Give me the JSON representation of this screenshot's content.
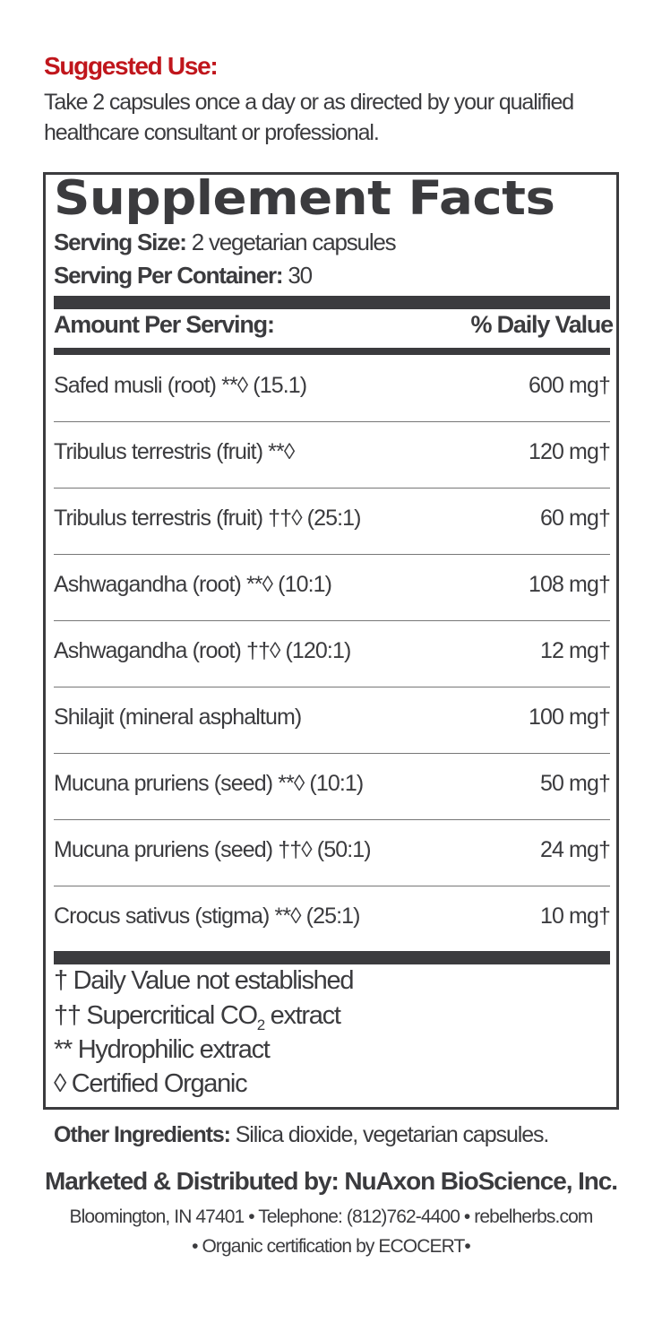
{
  "suggested_use": {
    "title": "Suggested Use:",
    "text": "Take 2 capsules once a day or as directed by your qualified healthcare consultant or professional."
  },
  "facts": {
    "title": "Supplement Facts",
    "serving_size_label": "Serving Size:",
    "serving_size_value": " 2 vegetarian capsules",
    "servings_label": "Serving Per Container:",
    "servings_value": " 30",
    "amount_header": "Amount Per Serving:",
    "dv_header": "% Daily Value",
    "rows": [
      {
        "name": "Safed musli (root) **◊ (15.1)",
        "amount": "600 mg†"
      },
      {
        "name": "Tribulus terrestris (fruit) **◊",
        "amount": "120 mg†"
      },
      {
        "name": "Tribulus terrestris (fruit) ††◊ (25:1)",
        "amount": "60 mg†"
      },
      {
        "name": "Ashwagandha (root) **◊ (10:1)",
        "amount": "108 mg†"
      },
      {
        "name": "Ashwagandha (root) ††◊ (120:1)",
        "amount": "12 mg†"
      },
      {
        "name": "Shilajit (mineral asphaltum)",
        "amount": "100 mg†"
      },
      {
        "name": "Mucuna pruriens (seed) **◊ (10:1)",
        "amount": "50 mg†"
      },
      {
        "name": "Mucuna pruriens (seed) ††◊ (50:1)",
        "amount": "24 mg†"
      },
      {
        "name": "Crocus sativus (stigma) **◊  (25:1)",
        "amount": "10 mg†"
      }
    ],
    "footnotes": {
      "dagger": "† Daily Value not established",
      "double_dagger_prefix": "†† Supercritical CO",
      "double_dagger_sub": "2",
      "double_dagger_suffix": " extract",
      "asterisk": "** Hydrophilic extract",
      "diamond": "◊ Certified Organic"
    }
  },
  "other_ingredients": {
    "label": "Other Ingredients:",
    "value": " Silica dioxide, vegetarian capsules."
  },
  "marketed_by": "Marketed & Distributed by: NuAxon BioScience, Inc.",
  "address_line": "Bloomington, IN 47401 • Telephone: (812)762-4400 • rebelherbs.com",
  "organic_line": "• Organic certification by ECOCERT•",
  "colors": {
    "accent_red": "#c0161c",
    "text": "#3b3b3e"
  }
}
